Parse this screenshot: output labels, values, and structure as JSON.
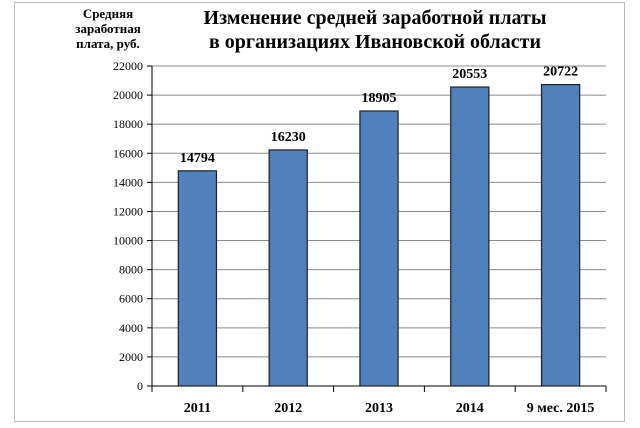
{
  "chart_data": {
    "type": "bar",
    "title": "Изменение средней заработной платы\nв организациях Ивановской области",
    "ylabel": "Средняя\nзаработная\nплата, руб.",
    "xlabel": "",
    "categories": [
      "2011",
      "2012",
      "2013",
      "2014",
      "9 мес. 2015"
    ],
    "values": [
      14794,
      16230,
      18905,
      20553,
      20722
    ],
    "data_labels": [
      "14794",
      "16230",
      "18905",
      "20553",
      "20722"
    ],
    "ylim": [
      0,
      22000
    ],
    "yticks": [
      "0",
      "2000",
      "4000",
      "6000",
      "8000",
      "10000",
      "12000",
      "14000",
      "16000",
      "18000",
      "20000",
      "22000"
    ],
    "grid": true,
    "legend": "none",
    "bar_color": "#4f81bd",
    "bar_edge_color": "#1f1f1f"
  }
}
